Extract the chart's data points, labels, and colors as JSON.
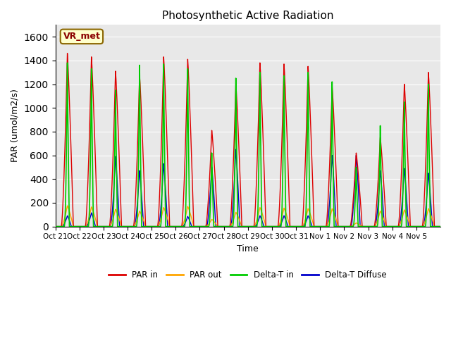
{
  "title": "Photosynthetic Active Radiation",
  "ylabel": "PAR (umol/m2/s)",
  "xlabel": "Time",
  "annotation": "VR_met",
  "ylim": [
    0,
    1700
  ],
  "background_color": "#e8e8e8",
  "legend": [
    "PAR in",
    "PAR out",
    "Delta-T in",
    "Delta-T Diffuse"
  ],
  "colors": {
    "PAR_in": "#dd0000",
    "PAR_out": "#ffa500",
    "DeltaT_in": "#00cc00",
    "DeltaT_Diffuse": "#0000cc"
  },
  "tick_labels": [
    "Oct 21",
    "Oct 22",
    "Oct 23",
    "Oct 24",
    "Oct 25",
    "Oct 26",
    "Oct 27",
    "Oct 28",
    "Oct 29",
    "Oct 30",
    "Oct 31",
    "Nov 1",
    "Nov 2",
    "Nov 3",
    "Nov 4",
    "Nov 5"
  ],
  "peaks_PAR_in": [
    1460,
    1430,
    1310,
    1270,
    1430,
    1410,
    810,
    1200,
    1380,
    1370,
    1350,
    1180,
    620,
    750,
    1200,
    1300
  ],
  "peaks_PAR_out": [
    175,
    165,
    145,
    130,
    160,
    170,
    60,
    120,
    160,
    155,
    150,
    150,
    30,
    130,
    140,
    150
  ],
  "peaks_DeltaT_in": [
    1380,
    1330,
    1150,
    1360,
    1370,
    1330,
    620,
    1250,
    1300,
    1270,
    1300,
    1220,
    500,
    850,
    1050,
    1200
  ],
  "peaks_DeltaT_diff": [
    90,
    115,
    590,
    470,
    530,
    85,
    500,
    650,
    90,
    90,
    90,
    600,
    600,
    470,
    490,
    450
  ]
}
